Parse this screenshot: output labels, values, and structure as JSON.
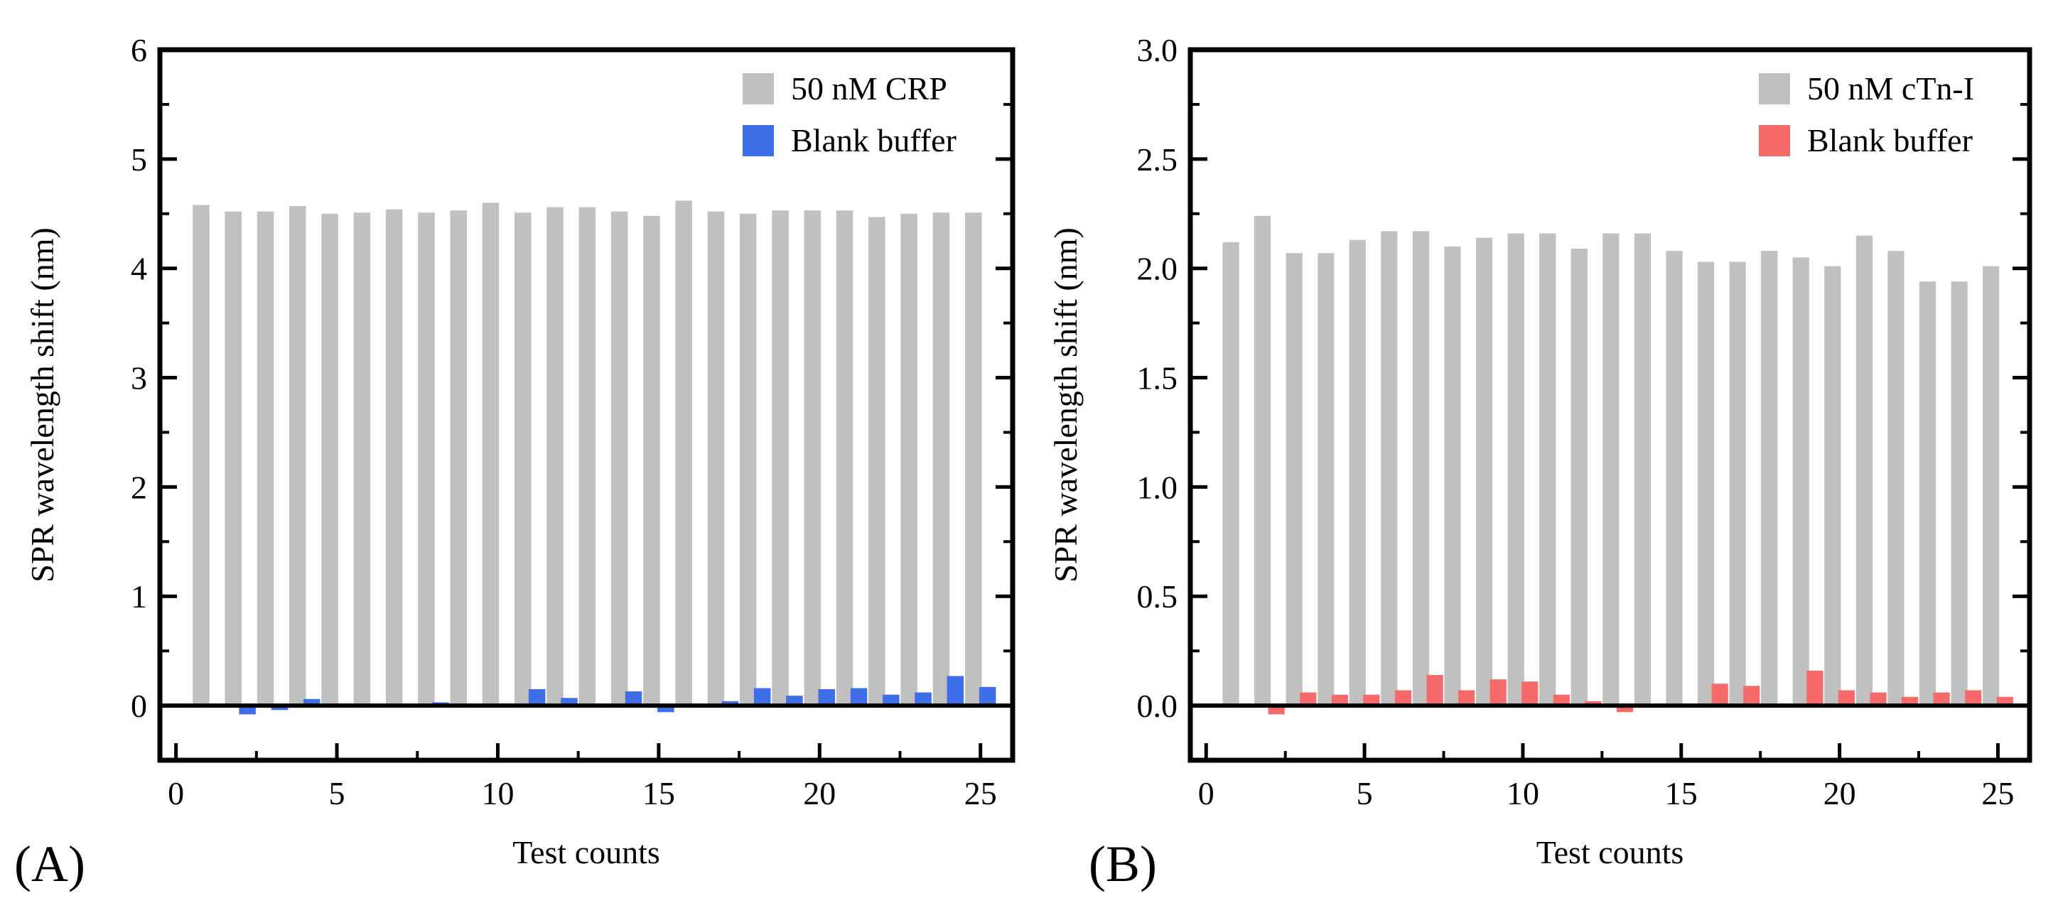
{
  "chart_data": [
    {
      "type": "bar",
      "panel_label": "(A)",
      "xlabel": "Test counts",
      "ylabel": "SPR wavelength shift (nm)",
      "xlim": [
        -0.5,
        26
      ],
      "ylim": [
        -0.5,
        6
      ],
      "xticks": [
        0,
        5,
        10,
        15,
        20,
        25
      ],
      "xtick_labels": [
        "0",
        "5",
        "10",
        "15",
        "20",
        "25"
      ],
      "yticks": [
        0,
        1,
        2,
        3,
        4,
        5,
        6
      ],
      "ytick_labels": [
        "0",
        "1",
        "2",
        "3",
        "4",
        "5",
        "6"
      ],
      "legend_position": "top-right",
      "x": [
        1,
        2,
        3,
        4,
        5,
        6,
        7,
        8,
        9,
        10,
        11,
        12,
        13,
        14,
        15,
        16,
        17,
        18,
        19,
        20,
        21,
        22,
        23,
        24,
        25
      ],
      "series": [
        {
          "name": "50 nM CRP",
          "color": "#c0c0c0",
          "values": [
            4.58,
            4.52,
            4.52,
            4.57,
            4.5,
            4.51,
            4.54,
            4.51,
            4.53,
            4.6,
            4.51,
            4.56,
            4.56,
            4.52,
            4.48,
            4.62,
            4.52,
            4.5,
            4.53,
            4.53,
            4.53,
            4.47,
            4.5,
            4.51,
            4.51
          ]
        },
        {
          "name": "Blank buffer",
          "color": "#3f6fe8",
          "values": [
            0.0,
            -0.08,
            -0.04,
            0.06,
            0.02,
            0.0,
            0.01,
            0.03,
            0.01,
            0.02,
            0.15,
            0.07,
            0.01,
            0.13,
            -0.06,
            0.0,
            0.04,
            0.16,
            0.09,
            0.15,
            0.16,
            0.1,
            0.12,
            0.27,
            0.17
          ]
        }
      ]
    },
    {
      "type": "bar",
      "panel_label": "(B)",
      "xlabel": "Test counts",
      "ylabel": "SPR wavelength shift (nm)",
      "xlim": [
        -0.5,
        26
      ],
      "ylim": [
        -0.25,
        3.0
      ],
      "xticks": [
        0,
        5,
        10,
        15,
        20,
        25
      ],
      "xtick_labels": [
        "0",
        "5",
        "10",
        "15",
        "20",
        "25"
      ],
      "yticks": [
        0,
        0.5,
        1.0,
        1.5,
        2.0,
        2.5,
        3.0
      ],
      "ytick_labels": [
        "0.0",
        "0.5",
        "1.0",
        "1.5",
        "2.0",
        "2.5",
        "3.0"
      ],
      "legend_position": "top-right",
      "x": [
        1,
        2,
        3,
        4,
        5,
        6,
        7,
        8,
        9,
        10,
        11,
        12,
        13,
        14,
        15,
        16,
        17,
        18,
        19,
        20,
        21,
        22,
        23,
        24,
        25
      ],
      "series": [
        {
          "name": "50 nM cTn-I",
          "color": "#c0c0c0",
          "values": [
            2.12,
            2.24,
            2.07,
            2.07,
            2.13,
            2.17,
            2.17,
            2.1,
            2.14,
            2.16,
            2.16,
            2.09,
            2.16,
            2.16,
            2.08,
            2.03,
            2.03,
            2.08,
            2.05,
            2.01,
            2.15,
            2.08,
            1.94,
            1.94,
            2.01
          ]
        },
        {
          "name": "Blank buffer",
          "color": "#f76a6a",
          "values": [
            0.0,
            -0.04,
            0.06,
            0.05,
            0.05,
            0.07,
            0.14,
            0.07,
            0.12,
            0.11,
            0.05,
            0.02,
            -0.03,
            0.0,
            0.0,
            0.1,
            0.09,
            0.0,
            0.16,
            0.07,
            0.06,
            0.04,
            0.06,
            0.07,
            0.04
          ]
        }
      ]
    }
  ]
}
